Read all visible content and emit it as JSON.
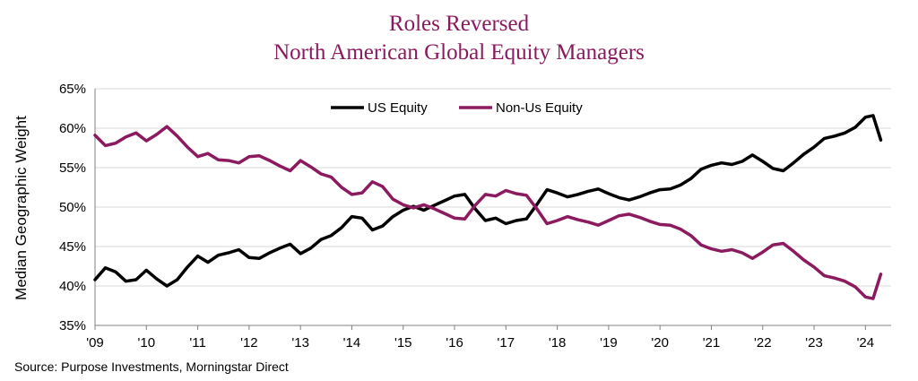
{
  "chart_data": {
    "type": "line",
    "title": "Roles Reversed",
    "subtitle": "North American Global Equity Managers",
    "ylabel": "Median Geographic Weight",
    "xlabel": "",
    "ylim": [
      35,
      65
    ],
    "xlim": [
      2009,
      2024.5
    ],
    "y_ticks": [
      35,
      40,
      45,
      50,
      55,
      60,
      65
    ],
    "y_tick_labels": [
      "35%",
      "40%",
      "45%",
      "50%",
      "55%",
      "60%",
      "65%"
    ],
    "x_ticks": [
      2009,
      2010,
      2011,
      2012,
      2013,
      2014,
      2015,
      2016,
      2017,
      2018,
      2019,
      2020,
      2021,
      2022,
      2023,
      2024
    ],
    "x_tick_labels": [
      "'09",
      "'10",
      "'11",
      "'12",
      "'13",
      "'14",
      "'15",
      "'16",
      "'17",
      "'18",
      "'19",
      "'20",
      "'21",
      "'22",
      "'23",
      "'24"
    ],
    "grid": true,
    "legend_position": "top-center",
    "colors": {
      "us": "#000000",
      "nonus": "#8b1a5e",
      "title": "#8a1a5e",
      "grid": "#d9d9d9",
      "axis": "#808080"
    },
    "series": [
      {
        "name": "US Equity",
        "color": "#000000",
        "x": [
          2009.0,
          2009.2,
          2009.4,
          2009.6,
          2009.8,
          2010.0,
          2010.2,
          2010.4,
          2010.6,
          2010.8,
          2011.0,
          2011.2,
          2011.4,
          2011.6,
          2011.8,
          2012.0,
          2012.2,
          2012.4,
          2012.6,
          2012.8,
          2013.0,
          2013.2,
          2013.4,
          2013.6,
          2013.8,
          2014.0,
          2014.2,
          2014.4,
          2014.6,
          2014.8,
          2015.0,
          2015.2,
          2015.4,
          2015.6,
          2015.8,
          2016.0,
          2016.2,
          2016.4,
          2016.6,
          2016.8,
          2017.0,
          2017.2,
          2017.4,
          2017.6,
          2017.8,
          2018.0,
          2018.2,
          2018.4,
          2018.6,
          2018.8,
          2019.0,
          2019.2,
          2019.4,
          2019.6,
          2019.8,
          2020.0,
          2020.2,
          2020.4,
          2020.6,
          2020.8,
          2021.0,
          2021.2,
          2021.4,
          2021.6,
          2021.8,
          2022.0,
          2022.2,
          2022.4,
          2022.6,
          2022.8,
          2023.0,
          2023.2,
          2023.4,
          2023.6,
          2023.8,
          2024.0,
          2024.15,
          2024.3
        ],
        "values": [
          40.8,
          42.3,
          41.8,
          40.6,
          40.8,
          42.0,
          40.9,
          40.0,
          40.8,
          42.4,
          43.8,
          43.0,
          43.9,
          44.2,
          44.6,
          43.6,
          43.5,
          44.2,
          44.8,
          45.3,
          44.1,
          44.8,
          45.9,
          46.4,
          47.4,
          48.8,
          48.6,
          47.1,
          47.6,
          48.8,
          49.6,
          50.1,
          49.6,
          50.2,
          50.8,
          51.4,
          51.6,
          49.8,
          48.3,
          48.6,
          47.9,
          48.3,
          48.5,
          50.3,
          52.2,
          51.8,
          51.3,
          51.6,
          52.0,
          52.3,
          51.7,
          51.2,
          50.9,
          51.3,
          51.8,
          52.2,
          52.3,
          52.8,
          53.6,
          54.8,
          55.3,
          55.6,
          55.4,
          55.8,
          56.6,
          55.8,
          54.9,
          54.6,
          55.6,
          56.7,
          57.6,
          58.7,
          59.0,
          59.4,
          60.1,
          61.4,
          61.6,
          58.5
        ]
      },
      {
        "name": "Non-Us Equity",
        "color": "#8b1a5e",
        "x": [
          2009.0,
          2009.2,
          2009.4,
          2009.6,
          2009.8,
          2010.0,
          2010.2,
          2010.4,
          2010.6,
          2010.8,
          2011.0,
          2011.2,
          2011.4,
          2011.6,
          2011.8,
          2012.0,
          2012.2,
          2012.4,
          2012.6,
          2012.8,
          2013.0,
          2013.2,
          2013.4,
          2013.6,
          2013.8,
          2014.0,
          2014.2,
          2014.4,
          2014.6,
          2014.8,
          2015.0,
          2015.2,
          2015.4,
          2015.6,
          2015.8,
          2016.0,
          2016.2,
          2016.4,
          2016.6,
          2016.8,
          2017.0,
          2017.2,
          2017.4,
          2017.6,
          2017.8,
          2018.0,
          2018.2,
          2018.4,
          2018.6,
          2018.8,
          2019.0,
          2019.2,
          2019.4,
          2019.6,
          2019.8,
          2020.0,
          2020.2,
          2020.4,
          2020.6,
          2020.8,
          2021.0,
          2021.2,
          2021.4,
          2021.6,
          2021.8,
          2022.0,
          2022.2,
          2022.4,
          2022.6,
          2022.8,
          2023.0,
          2023.2,
          2023.4,
          2023.6,
          2023.8,
          2024.0,
          2024.15,
          2024.3
        ],
        "values": [
          59.1,
          57.8,
          58.1,
          58.9,
          59.4,
          58.4,
          59.2,
          60.2,
          59.0,
          57.6,
          56.4,
          56.8,
          56.0,
          55.9,
          55.6,
          56.4,
          56.5,
          55.9,
          55.2,
          54.6,
          55.9,
          55.1,
          54.2,
          53.8,
          52.5,
          51.6,
          51.8,
          53.2,
          52.6,
          51.0,
          50.3,
          49.9,
          50.3,
          49.8,
          49.2,
          48.6,
          48.5,
          50.2,
          51.6,
          51.4,
          52.1,
          51.7,
          51.5,
          49.8,
          47.9,
          48.3,
          48.8,
          48.4,
          48.1,
          47.7,
          48.3,
          48.9,
          49.1,
          48.7,
          48.2,
          47.8,
          47.7,
          47.2,
          46.4,
          45.2,
          44.7,
          44.4,
          44.6,
          44.2,
          43.5,
          44.3,
          45.2,
          45.4,
          44.4,
          43.3,
          42.4,
          41.3,
          41.0,
          40.6,
          39.9,
          38.6,
          38.4,
          41.5
        ]
      }
    ]
  },
  "source": "Source: Purpose Investments, Morningstar Direct"
}
